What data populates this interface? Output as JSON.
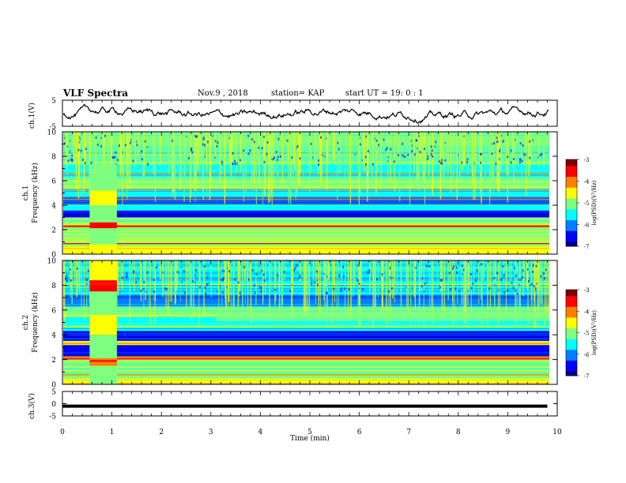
{
  "header": {
    "title": "VLF Spectra",
    "date": "Nov.9 , 2018",
    "station": "station= KAP",
    "start": "start UT = 19: 0 : 1"
  },
  "chart_data": [
    {
      "type": "line",
      "panel": "ch1-waveform",
      "ylabel": "ch.1(V)",
      "ylim": [
        -5,
        5
      ],
      "yticks": [
        "5",
        "-5"
      ],
      "xlim": [
        0,
        10
      ],
      "description_values": "waveform trace fluctuating roughly between -3 and 3 V",
      "color": "#000000"
    },
    {
      "type": "heatmap",
      "panel": "ch1-spectrogram",
      "ylabel": "ch.1 Frequency (kHz)",
      "ylim": [
        0,
        10
      ],
      "yticks": [
        "0",
        "2",
        "4",
        "6",
        "8",
        "10"
      ],
      "xlim": [
        0,
        10
      ],
      "colorbar": {
        "label": "log(PSD)(V²/Hz)",
        "ticks": [
          "-3",
          "-4",
          "-5",
          "-6",
          "-7"
        ],
        "range": [
          -7,
          -3
        ]
      }
    },
    {
      "type": "heatmap",
      "panel": "ch2-spectrogram",
      "ylabel": "ch.2 Frequency (kHz)",
      "ylim": [
        0,
        10
      ],
      "yticks": [
        "0",
        "2",
        "4",
        "6",
        "8",
        "10"
      ],
      "xlim": [
        0,
        10
      ],
      "colorbar": {
        "label": "log(PSD)(V²/Hz)",
        "ticks": [
          "-3",
          "-4",
          "-5",
          "-6",
          "-7"
        ],
        "range": [
          -7,
          -3
        ]
      }
    },
    {
      "type": "line",
      "panel": "ch3-waveform",
      "ylabel": "ch.3(V)",
      "ylim": [
        -5,
        5
      ],
      "yticks": [
        "5",
        "0",
        "-5"
      ],
      "xlim": [
        0,
        10
      ],
      "x": [
        0,
        9.8
      ],
      "y": [
        -1,
        -1
      ],
      "color": "#000000"
    }
  ],
  "xaxis": {
    "label": "Time (min)",
    "ticks": [
      "0",
      "1",
      "2",
      "3",
      "4",
      "5",
      "6",
      "7",
      "8",
      "9",
      "10"
    ]
  },
  "colors": {
    "jet": [
      "#00007f",
      "#0000ff",
      "#007fff",
      "#00ffff",
      "#7fff7f",
      "#ffff00",
      "#ff7f00",
      "#ff0000",
      "#7f0000"
    ]
  }
}
